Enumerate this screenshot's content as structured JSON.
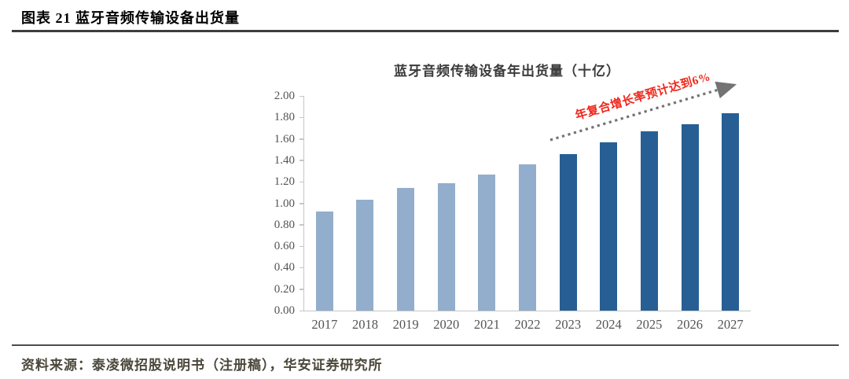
{
  "header": {
    "title": "图表 21 蓝牙音频传输设备出货量"
  },
  "footer": {
    "source": "资料来源：泰凌微招股说明书（注册稿），华安证券研究所"
  },
  "chart_data": {
    "type": "bar",
    "title": "蓝牙音频传输设备年出货量（十亿）",
    "categories": [
      "2017",
      "2018",
      "2019",
      "2020",
      "2021",
      "2022",
      "2023",
      "2024",
      "2025",
      "2026",
      "2027"
    ],
    "values": [
      0.92,
      1.03,
      1.14,
      1.19,
      1.27,
      1.36,
      1.46,
      1.57,
      1.67,
      1.74,
      1.84
    ],
    "xlabel": "",
    "ylabel": "",
    "ylim": [
      0,
      2
    ],
    "y_tick_labels": [
      "2.00",
      "1.80",
      "1.60",
      "1.40",
      "1.20",
      "1.00",
      "0.80",
      "0.60",
      "0.40",
      "0.20",
      "0.00"
    ],
    "grid": false,
    "legend_position": "none",
    "historical_color": "#92AECC",
    "forecast_color": "#275F94",
    "forecast_start_index": 6,
    "axis_color": "#c6c6c6",
    "tick_label_color": "#545454",
    "annotation": {
      "text": "年复合增长率预计达到6%",
      "color": "#f0281c",
      "arrow_color": "#737373"
    }
  }
}
